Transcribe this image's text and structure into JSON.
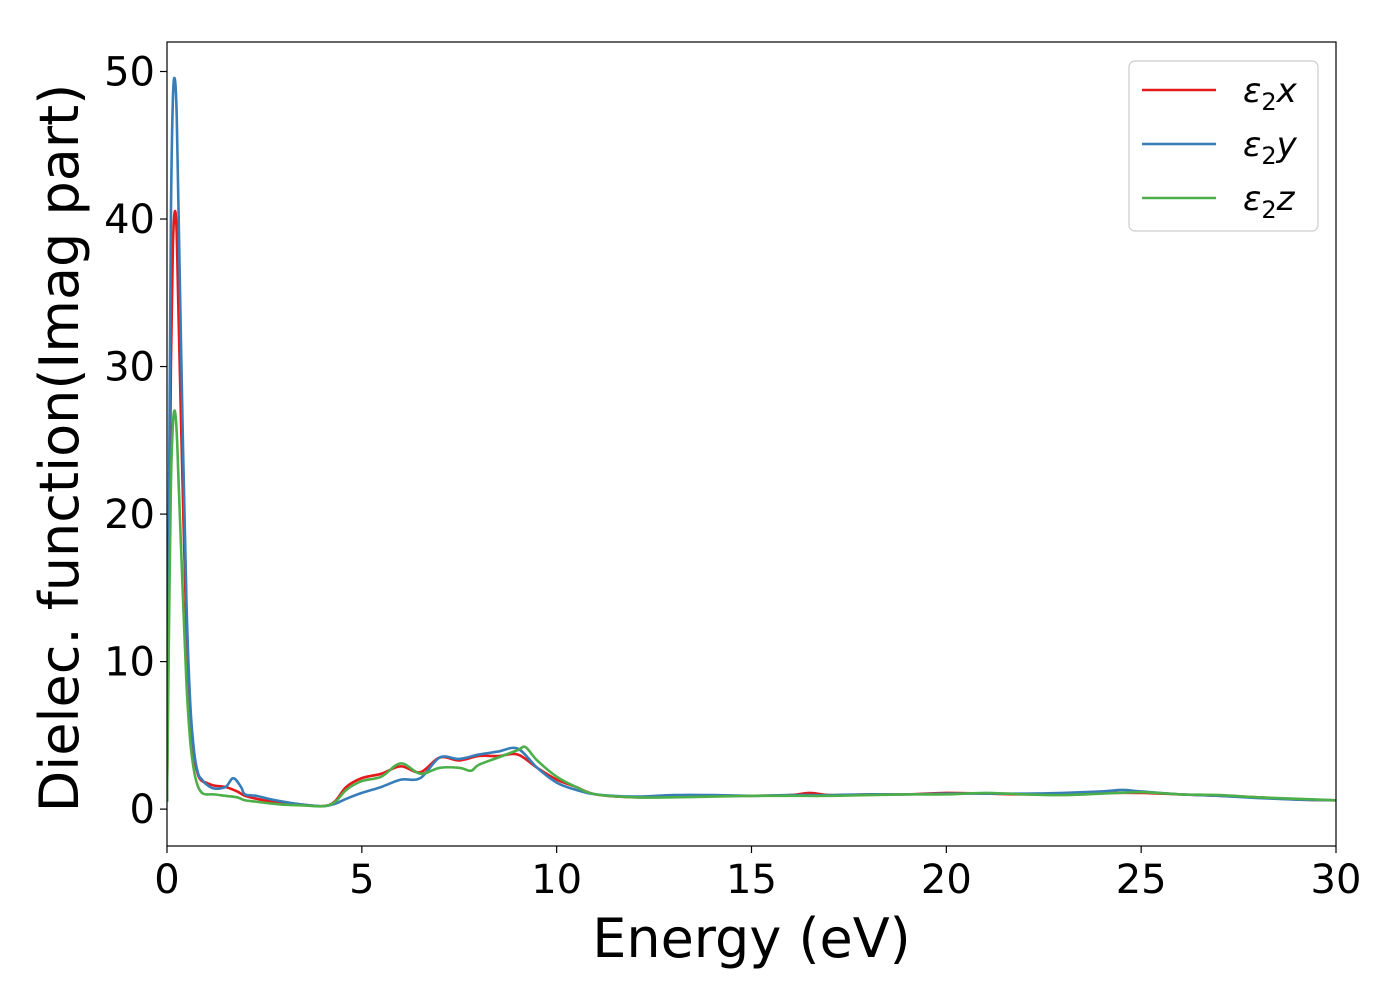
{
  "chart_data": {
    "type": "line",
    "title": "",
    "xlabel": "Energy (eV)",
    "ylabel": "Dielec. function(Imag part)",
    "xlim": [
      0,
      30
    ],
    "ylim": [
      -2.5,
      52
    ],
    "xticks": [
      0,
      5,
      10,
      15,
      20,
      25,
      30
    ],
    "yticks": [
      0,
      10,
      20,
      30,
      40,
      50
    ],
    "grid": false,
    "legend_position": "top-right",
    "series": [
      {
        "name": "ε2x",
        "legend_main": "ε",
        "legend_sub": "2",
        "legend_suffix": "x",
        "color": "#e41a1c",
        "x": [
          0,
          0.05,
          0.1,
          0.15,
          0.2,
          0.25,
          0.3,
          0.4,
          0.5,
          0.6,
          0.7,
          0.8,
          0.9,
          1.0,
          1.2,
          1.5,
          1.8,
          2.0,
          2.3,
          2.6,
          3.0,
          3.5,
          4.0,
          4.3,
          4.6,
          5.0,
          5.5,
          6.0,
          6.5,
          7.0,
          7.5,
          8.0,
          8.5,
          9.0,
          9.5,
          10.0,
          10.5,
          11.0,
          12.0,
          13.0,
          14.0,
          15.0,
          16.0,
          16.5,
          17.0,
          18.0,
          19.0,
          20.0,
          21.0,
          22.0,
          23.0,
          24.0,
          25.0,
          26.0,
          27.0,
          28.0,
          29.0,
          30.0
        ],
        "y": [
          0.5,
          15,
          30,
          38,
          40.5,
          39,
          33,
          22,
          12,
          6.5,
          3.5,
          2.3,
          1.9,
          1.8,
          1.6,
          1.5,
          1.2,
          0.9,
          0.7,
          0.55,
          0.45,
          0.3,
          0.2,
          0.5,
          1.5,
          2.1,
          2.4,
          2.9,
          2.5,
          3.5,
          3.3,
          3.6,
          3.6,
          3.7,
          2.8,
          2.0,
          1.5,
          1.0,
          0.8,
          0.85,
          0.9,
          0.9,
          0.95,
          1.1,
          0.95,
          1.0,
          1.0,
          1.1,
          1.05,
          1.0,
          1.05,
          1.1,
          1.1,
          1.0,
          0.9,
          0.8,
          0.65,
          0.6
        ]
      },
      {
        "name": "ε2y",
        "legend_main": "ε",
        "legend_sub": "2",
        "legend_suffix": "y",
        "color": "#377eb8",
        "x": [
          0,
          0.05,
          0.1,
          0.15,
          0.2,
          0.25,
          0.3,
          0.4,
          0.5,
          0.6,
          0.7,
          0.8,
          0.9,
          1.0,
          1.2,
          1.5,
          1.7,
          1.9,
          2.0,
          2.3,
          2.6,
          3.0,
          3.5,
          4.0,
          4.3,
          4.6,
          5.0,
          5.5,
          6.0,
          6.5,
          7.0,
          7.5,
          8.0,
          8.5,
          9.0,
          9.5,
          10.0,
          10.5,
          11.0,
          12.0,
          13.0,
          14.0,
          15.0,
          16.0,
          17.0,
          18.0,
          19.0,
          20.0,
          21.0,
          22.0,
          23.0,
          24.0,
          24.5,
          25.0,
          26.0,
          27.0,
          28.0,
          29.0,
          30.0
        ],
        "y": [
          0.5,
          20,
          40,
          48,
          49.5,
          47,
          40,
          26,
          14,
          7,
          3.8,
          2.4,
          2.0,
          1.7,
          1.4,
          1.5,
          2.1,
          1.5,
          1.0,
          0.9,
          0.7,
          0.5,
          0.3,
          0.2,
          0.35,
          0.7,
          1.1,
          1.5,
          2.0,
          2.1,
          3.5,
          3.4,
          3.7,
          3.9,
          4.1,
          2.8,
          1.8,
          1.3,
          1.0,
          0.85,
          0.95,
          0.95,
          0.9,
          0.95,
          0.95,
          1.0,
          1.0,
          1.05,
          1.05,
          1.05,
          1.1,
          1.2,
          1.3,
          1.2,
          1.0,
          0.9,
          0.75,
          0.65,
          0.6
        ]
      },
      {
        "name": "ε2z",
        "legend_main": "ε",
        "legend_sub": "2",
        "legend_suffix": "z",
        "color": "#4daf4a",
        "x": [
          0,
          0.05,
          0.1,
          0.15,
          0.2,
          0.25,
          0.3,
          0.4,
          0.5,
          0.6,
          0.7,
          0.8,
          0.9,
          1.0,
          1.2,
          1.5,
          1.8,
          2.0,
          2.3,
          2.6,
          3.0,
          3.5,
          4.0,
          4.3,
          4.6,
          5.0,
          5.5,
          6.0,
          6.5,
          7.0,
          7.5,
          7.8,
          8.0,
          8.5,
          9.0,
          9.2,
          9.5,
          10.0,
          10.5,
          11.0,
          12.0,
          13.0,
          14.0,
          15.0,
          16.0,
          17.0,
          18.0,
          19.0,
          20.0,
          21.0,
          22.0,
          23.0,
          24.0,
          25.0,
          26.0,
          27.0,
          28.0,
          29.0,
          30.0
        ],
        "y": [
          0.5,
          12,
          22,
          26,
          27,
          25.5,
          22,
          15,
          8.5,
          4.5,
          2.5,
          1.5,
          1.1,
          1.0,
          1.0,
          0.9,
          0.8,
          0.6,
          0.5,
          0.4,
          0.3,
          0.25,
          0.2,
          0.45,
          1.3,
          1.9,
          2.2,
          3.1,
          2.4,
          2.8,
          2.8,
          2.6,
          3.0,
          3.5,
          4.0,
          4.2,
          3.3,
          2.2,
          1.5,
          1.0,
          0.8,
          0.8,
          0.85,
          0.9,
          0.9,
          0.9,
          0.95,
          1.0,
          1.0,
          1.1,
          1.0,
          0.95,
          1.05,
          1.15,
          1.0,
          0.95,
          0.8,
          0.7,
          0.6
        ]
      }
    ]
  }
}
